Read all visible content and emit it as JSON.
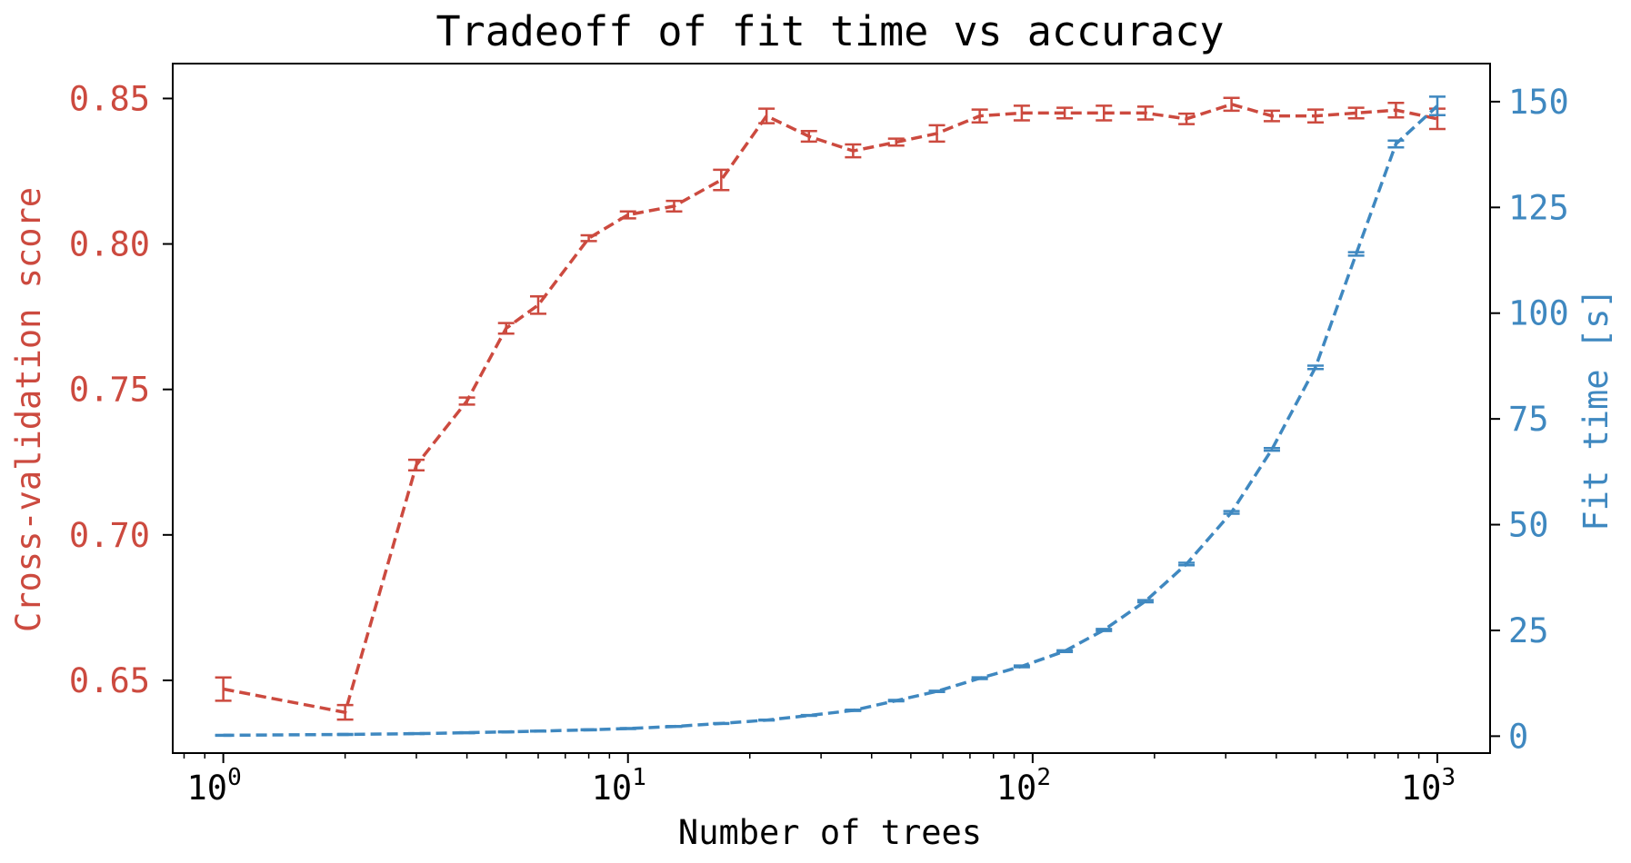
{
  "colors": {
    "score": "#cc4a3f",
    "time": "#3f88c0",
    "axis": "#000000",
    "background": "#ffffff"
  },
  "chart_data": {
    "type": "line",
    "title": "Tradeoff of fit time vs accuracy",
    "xlabel": "Number of trees",
    "xscale": "log",
    "xlim": [
      0.75,
      1350
    ],
    "x_ticks": [
      {
        "value": 1,
        "base": "10",
        "exp": "0"
      },
      {
        "value": 10,
        "base": "10",
        "exp": "1"
      },
      {
        "value": 100,
        "base": "10",
        "exp": "2"
      },
      {
        "value": 1000,
        "base": "10",
        "exp": "3"
      }
    ],
    "y_left": {
      "label": "Cross-validation score",
      "lim": [
        0.625,
        0.862
      ],
      "ticks": [
        "0.65",
        "0.70",
        "0.75",
        "0.80",
        "0.85"
      ]
    },
    "y_right": {
      "label": "Fit time [s]",
      "lim": [
        -4,
        159
      ],
      "ticks": [
        "0",
        "25",
        "50",
        "75",
        "100",
        "125",
        "150"
      ]
    },
    "grid": false,
    "legend": "none",
    "series": [
      {
        "axis": "left",
        "color": "#cc4a3f",
        "style": "dashed",
        "points": [
          {
            "x": 1,
            "y": 0.647,
            "err": 0.004
          },
          {
            "x": 2,
            "y": 0.639,
            "err": 0.0025
          },
          {
            "x": 3,
            "y": 0.724,
            "err": 0.0018
          },
          {
            "x": 4,
            "y": 0.746,
            "err": 0.0012
          },
          {
            "x": 5,
            "y": 0.771,
            "err": 0.0018
          },
          {
            "x": 6,
            "y": 0.779,
            "err": 0.003
          },
          {
            "x": 8,
            "y": 0.802,
            "err": 0.001
          },
          {
            "x": 10,
            "y": 0.81,
            "err": 0.0012
          },
          {
            "x": 13,
            "y": 0.813,
            "err": 0.0018
          },
          {
            "x": 17,
            "y": 0.822,
            "err": 0.0035
          },
          {
            "x": 22,
            "y": 0.844,
            "err": 0.0025
          },
          {
            "x": 28,
            "y": 0.837,
            "err": 0.0018
          },
          {
            "x": 36,
            "y": 0.832,
            "err": 0.0022
          },
          {
            "x": 46,
            "y": 0.835,
            "err": 0.0012
          },
          {
            "x": 58,
            "y": 0.838,
            "err": 0.0028
          },
          {
            "x": 74,
            "y": 0.844,
            "err": 0.0022
          },
          {
            "x": 94,
            "y": 0.845,
            "err": 0.0025
          },
          {
            "x": 120,
            "y": 0.845,
            "err": 0.0018
          },
          {
            "x": 150,
            "y": 0.845,
            "err": 0.0025
          },
          {
            "x": 190,
            "y": 0.845,
            "err": 0.0022
          },
          {
            "x": 240,
            "y": 0.843,
            "err": 0.0018
          },
          {
            "x": 310,
            "y": 0.848,
            "err": 0.0022
          },
          {
            "x": 390,
            "y": 0.844,
            "err": 0.0018
          },
          {
            "x": 500,
            "y": 0.844,
            "err": 0.0022
          },
          {
            "x": 630,
            "y": 0.845,
            "err": 0.0018
          },
          {
            "x": 790,
            "y": 0.846,
            "err": 0.0025
          },
          {
            "x": 1000,
            "y": 0.843,
            "err": 0.0035
          }
        ]
      },
      {
        "axis": "right",
        "color": "#3f88c0",
        "style": "dashed",
        "points": [
          {
            "x": 1,
            "y": 0.2,
            "err": 0.1
          },
          {
            "x": 2,
            "y": 0.4,
            "err": 0.1
          },
          {
            "x": 3,
            "y": 0.6,
            "err": 0.1
          },
          {
            "x": 4,
            "y": 0.8,
            "err": 0.1
          },
          {
            "x": 5,
            "y": 1.0,
            "err": 0.1
          },
          {
            "x": 6,
            "y": 1.2,
            "err": 0.1
          },
          {
            "x": 8,
            "y": 1.5,
            "err": 0.1
          },
          {
            "x": 10,
            "y": 1.8,
            "err": 0.1
          },
          {
            "x": 13,
            "y": 2.3,
            "err": 0.1
          },
          {
            "x": 17,
            "y": 3.0,
            "err": 0.1
          },
          {
            "x": 22,
            "y": 3.8,
            "err": 0.1
          },
          {
            "x": 28,
            "y": 4.9,
            "err": 0.1
          },
          {
            "x": 36,
            "y": 6.1,
            "err": 0.15
          },
          {
            "x": 46,
            "y": 8.4,
            "err": 0.15
          },
          {
            "x": 58,
            "y": 10.6,
            "err": 0.15
          },
          {
            "x": 74,
            "y": 13.7,
            "err": 0.2
          },
          {
            "x": 94,
            "y": 16.5,
            "err": 0.2
          },
          {
            "x": 120,
            "y": 20.1,
            "err": 0.2
          },
          {
            "x": 150,
            "y": 25.1,
            "err": 0.25
          },
          {
            "x": 190,
            "y": 31.9,
            "err": 0.25
          },
          {
            "x": 240,
            "y": 40.7,
            "err": 0.3
          },
          {
            "x": 310,
            "y": 52.9,
            "err": 0.3
          },
          {
            "x": 390,
            "y": 67.8,
            "err": 0.3
          },
          {
            "x": 500,
            "y": 87.2,
            "err": 0.4
          },
          {
            "x": 630,
            "y": 114.0,
            "err": 0.4
          },
          {
            "x": 790,
            "y": 140.0,
            "err": 0.8
          },
          {
            "x": 1000,
            "y": 149.0,
            "err": 2.2
          }
        ]
      }
    ]
  }
}
